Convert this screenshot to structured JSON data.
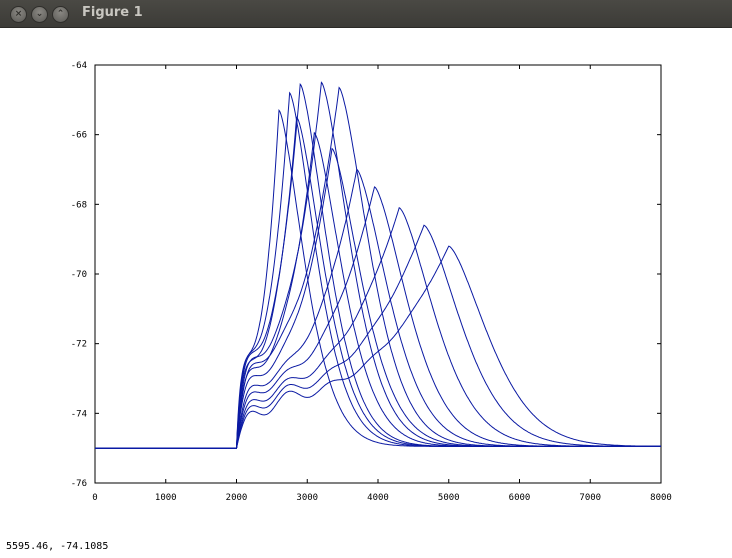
{
  "window": {
    "title": "Figure 1"
  },
  "status_text": "5595.46, -74.1085",
  "icons": [
    "close-icon",
    "minimize-icon",
    "maximize-icon"
  ],
  "chart_data": {
    "type": "line",
    "title": "",
    "xlabel": "",
    "ylabel": "",
    "xlim": [
      0,
      8000
    ],
    "ylim": [
      -76,
      -64
    ],
    "xticks": [
      0,
      1000,
      2000,
      3000,
      4000,
      5000,
      6000,
      7000,
      8000
    ],
    "yticks": [
      -64,
      -66,
      -68,
      -70,
      -72,
      -74,
      -76
    ],
    "grid": false,
    "legend": "none",
    "color": "#0b1aa3",
    "stimulus_onset": 2000,
    "baseline": -75,
    "final_value": -74.95,
    "traces": [
      {
        "peak_x": 2600,
        "peak_y": -65.3
      },
      {
        "peak_x": 2750,
        "peak_y": -64.8
      },
      {
        "peak_x": 2900,
        "peak_y": -64.55
      },
      {
        "peak_x": 3200,
        "peak_y": -64.5
      },
      {
        "peak_x": 3450,
        "peak_y": -64.65
      },
      {
        "peak_x": 2850,
        "peak_y": -65.5
      },
      {
        "peak_x": 3100,
        "peak_y": -65.95
      },
      {
        "peak_x": 3350,
        "peak_y": -66.4
      },
      {
        "peak_x": 3700,
        "peak_y": -67.0
      },
      {
        "peak_x": 3950,
        "peak_y": -67.5
      },
      {
        "peak_x": 4300,
        "peak_y": -68.1
      },
      {
        "peak_x": 4650,
        "peak_y": -68.6
      },
      {
        "peak_x": 5000,
        "peak_y": -69.2
      }
    ]
  }
}
